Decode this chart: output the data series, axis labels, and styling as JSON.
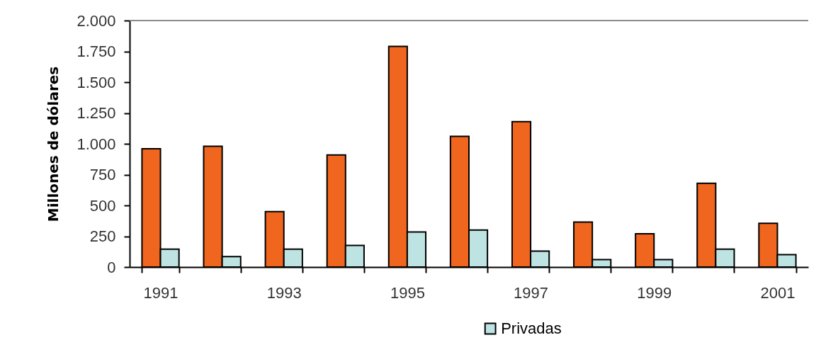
{
  "chart_data": {
    "type": "bar",
    "ylabel": "Millones de dólares",
    "categories": [
      "1991",
      null,
      "1993",
      null,
      "1995",
      null,
      "1997",
      null,
      "1999",
      null,
      "2001"
    ],
    "series": [
      {
        "color": "#f0661e",
        "values": [
          960,
          980,
          450,
          910,
          1790,
          1060,
          1180,
          365,
          270,
          680,
          355
        ]
      },
      {
        "name": "Privadas",
        "color": "#bde3e3",
        "values": [
          145,
          85,
          145,
          175,
          285,
          300,
          130,
          60,
          60,
          145,
          100
        ]
      }
    ],
    "ylim": [
      0,
      2000
    ],
    "yticks": [
      0,
      250,
      500,
      750,
      {
        "value": 1000,
        "label": "1.000"
      },
      {
        "value": 1250,
        "label": "1.250"
      },
      {
        "value": 1500,
        "label": "1.500"
      },
      {
        "value": 1750,
        "label": "1.750"
      },
      {
        "value": 2000,
        "label": "2.000"
      }
    ],
    "legend": "bottom"
  }
}
